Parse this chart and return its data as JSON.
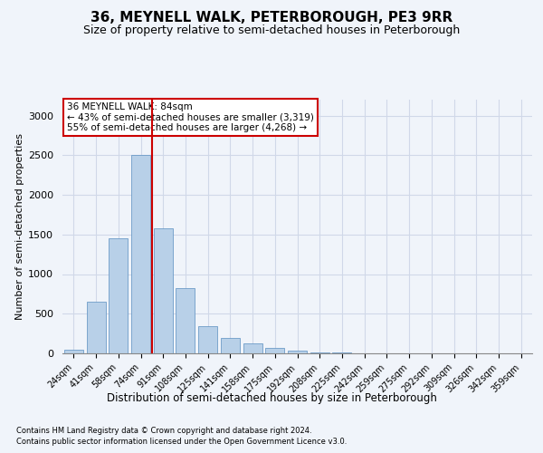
{
  "title1": "36, MEYNELL WALK, PETERBOROUGH, PE3 9RR",
  "title2": "Size of property relative to semi-detached houses in Peterborough",
  "xlabel": "Distribution of semi-detached houses by size in Peterborough",
  "ylabel": "Number of semi-detached properties",
  "categories": [
    "24sqm",
    "41sqm",
    "58sqm",
    "74sqm",
    "91sqm",
    "108sqm",
    "125sqm",
    "141sqm",
    "158sqm",
    "175sqm",
    "192sqm",
    "208sqm",
    "225sqm",
    "242sqm",
    "259sqm",
    "275sqm",
    "292sqm",
    "309sqm",
    "326sqm",
    "342sqm",
    "359sqm"
  ],
  "values": [
    50,
    650,
    1450,
    2500,
    1580,
    820,
    340,
    200,
    130,
    70,
    30,
    15,
    8,
    5,
    3,
    2,
    1,
    0,
    1,
    0,
    0
  ],
  "bar_color": "#b8d0e8",
  "bar_edge_color": "#5a8fc0",
  "grid_color": "#d0d8e8",
  "vline_color": "#cc0000",
  "annotation_text": "36 MEYNELL WALK: 84sqm\n← 43% of semi-detached houses are smaller (3,319)\n55% of semi-detached houses are larger (4,268) →",
  "annotation_box_color": "#ffffff",
  "annotation_box_edge": "#cc0000",
  "footnote1": "Contains HM Land Registry data © Crown copyright and database right 2024.",
  "footnote2": "Contains public sector information licensed under the Open Government Licence v3.0.",
  "ylim": [
    0,
    3200
  ],
  "bg_color": "#f0f4fa",
  "title1_fontsize": 11,
  "title2_fontsize": 9,
  "ylabel_fontsize": 8,
  "xlabel_fontsize": 8.5,
  "tick_fontsize": 7,
  "annot_fontsize": 7.5,
  "footnote_fontsize": 6
}
